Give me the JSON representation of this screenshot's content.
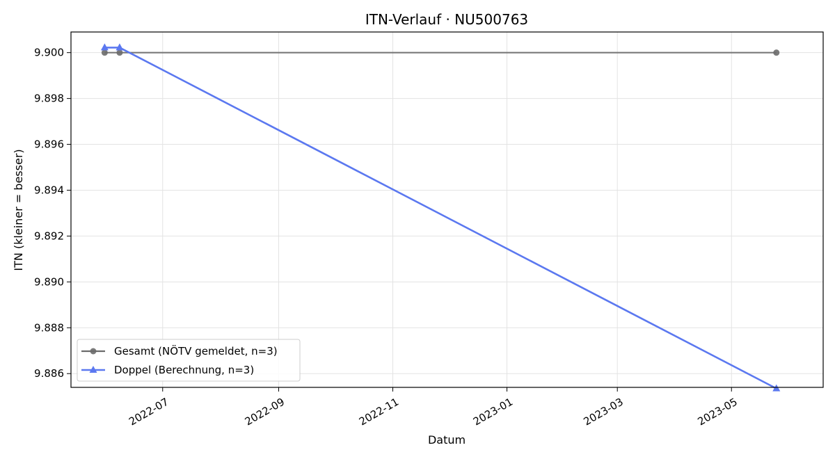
{
  "chart_data": {
    "type": "line",
    "title": "ITN-Verlauf · NU500763",
    "xlabel": "Datum",
    "ylabel": "ITN  (kleiner = besser)",
    "xlim": [
      "2022-05-13",
      "2023-06-19"
    ],
    "ylim": [
      9.8854,
      9.9009
    ],
    "x_ticks": [
      "2022-07",
      "2022-09",
      "2022-11",
      "2023-01",
      "2023-03",
      "2023-05"
    ],
    "y_ticks": [
      "9.886",
      "9.888",
      "9.890",
      "9.892",
      "9.894",
      "9.896",
      "9.898",
      "9.900"
    ],
    "grid": true,
    "legend_position": "lower-left",
    "series": [
      {
        "name": "Gesamt (NÖTV gemeldet, n=3)",
        "color": "#6b6b6b",
        "marker": "circle",
        "points": [
          {
            "x": "2022-05-31",
            "y": 9.9
          },
          {
            "x": "2022-06-08",
            "y": 9.9
          },
          {
            "x": "2023-05-25",
            "y": 9.9
          }
        ]
      },
      {
        "name": "Doppel (Berechnung, n=3)",
        "color": "#5b78f0",
        "marker": "triangle",
        "points": [
          {
            "x": "2022-05-31",
            "y": 9.90022
          },
          {
            "x": "2022-06-08",
            "y": 9.90022
          },
          {
            "x": "2023-05-25",
            "y": 9.88535
          }
        ]
      }
    ]
  }
}
